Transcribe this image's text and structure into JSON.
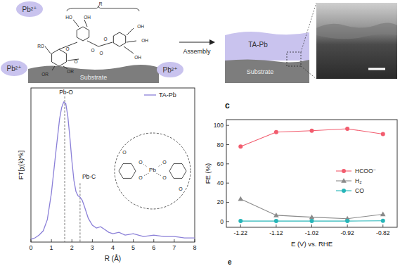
{
  "schematic": {
    "ions": [
      "Pb²⁺",
      "Pb²⁺",
      "Pb²⁺"
    ],
    "molecule_labels": [
      "R",
      "HO",
      "OH",
      "RO",
      "O",
      "OR",
      "OR",
      "O",
      "O",
      "O",
      "O",
      "OH",
      "OH",
      "OH"
    ],
    "arrow_label": "Assembly",
    "layer_label": "TA-Pb",
    "substrate_labels": [
      "Substrate",
      "Substrate"
    ]
  },
  "chart_data": [
    {
      "type": "line",
      "x": [
        0,
        0.2,
        0.4,
        0.6,
        0.8,
        1.0,
        1.2,
        1.4,
        1.5,
        1.6,
        1.7,
        1.8,
        1.9,
        2.0,
        2.1,
        2.2,
        2.3,
        2.4,
        2.5,
        2.6,
        2.8,
        3.0,
        3.2,
        3.4,
        3.6,
        3.8,
        4.0,
        4.3,
        4.6,
        5.0,
        5.5,
        6.0,
        6.5,
        7.0,
        7.5,
        8.0
      ],
      "series": [
        {
          "name": "TA-Pb",
          "color": "#8b80d8",
          "values": [
            0.02,
            0.03,
            0.05,
            0.08,
            0.16,
            0.35,
            0.62,
            0.88,
            0.96,
            1.0,
            0.99,
            0.9,
            0.75,
            0.58,
            0.44,
            0.36,
            0.33,
            0.32,
            0.3,
            0.26,
            0.17,
            0.12,
            0.1,
            0.11,
            0.09,
            0.07,
            0.06,
            0.07,
            0.05,
            0.06,
            0.04,
            0.05,
            0.04,
            0.04,
            0.03,
            0.03
          ]
        }
      ],
      "xlim": [
        0,
        8
      ],
      "xticks": [
        0,
        1,
        2,
        3,
        4,
        5,
        6,
        7,
        8
      ],
      "ylim": [
        0,
        1.1
      ],
      "tick_labels": "x",
      "x_label": "R (Å)",
      "y_label": "FT[χ(k)*k]",
      "legend": "upper right",
      "annotations": [
        {
          "text": "Pb-O",
          "x": 1.65
        },
        {
          "text": "Pb-C",
          "x": 2.4
        }
      ]
    },
    {
      "type": "line",
      "x": [
        -1.22,
        -1.12,
        -1.02,
        -0.92,
        -0.82
      ],
      "series": [
        {
          "name": "HCOO⁻",
          "color": "#f25c6e",
          "marker": "circle",
          "values": [
            78,
            93,
            94.5,
            96.5,
            91
          ]
        },
        {
          "name": "H₂",
          "color": "#8a8a8a",
          "marker": "triangle",
          "values": [
            23.5,
            6.5,
            4.5,
            3,
            7.5
          ]
        },
        {
          "name": "CO",
          "color": "#26b5b8",
          "marker": "circle",
          "values": [
            0.5,
            0.5,
            0.5,
            0.5,
            0.8
          ]
        }
      ],
      "xlim": [
        -1.26,
        -0.78
      ],
      "xticks": [
        -1.22,
        -1.12,
        -1.02,
        -0.92,
        -0.82
      ],
      "ylim": [
        -6,
        106
      ],
      "yticks": [
        0,
        20,
        40,
        60,
        80,
        100
      ],
      "x_label": "E (V) vs. RHE",
      "y_label": "FE (%)",
      "legend": "center right"
    }
  ],
  "inset_structure": {
    "center": "Pb",
    "atoms": [
      "O",
      "O",
      "O",
      "O",
      "O",
      "O"
    ]
  },
  "panel_labels": [
    "c",
    "e"
  ]
}
